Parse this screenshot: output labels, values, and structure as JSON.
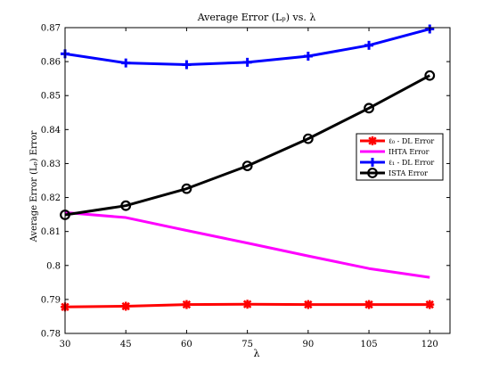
{
  "chart_data": {
    "type": "line",
    "title": "Average Error (Lₚ) vs. λ",
    "xlabel": "λ",
    "ylabel": "Average Error (Lₚ) Error",
    "x": [
      30,
      45,
      60,
      75,
      90,
      105,
      120
    ],
    "xlim": [
      30,
      125
    ],
    "ylim": [
      0.78,
      0.87
    ],
    "xticks": [
      "30",
      "45",
      "60",
      "75",
      "90",
      "105",
      "120"
    ],
    "yticks": [
      "0.78",
      "0.79",
      "0.8",
      "0.81",
      "0.82",
      "0.83",
      "0.84",
      "0.85",
      "0.86",
      "0.87"
    ],
    "grid": false,
    "legend_position": "right",
    "series": [
      {
        "name": "ℓ₀ - DL Error",
        "color": "#ff0000",
        "marker": "asterisk",
        "values": [
          0.7878,
          0.788,
          0.7885,
          0.7886,
          0.7885,
          0.7885,
          0.7885
        ]
      },
      {
        "name": "IHTA Error",
        "color": "#ff00ff",
        "marker": "none",
        "values": [
          0.8156,
          0.8141,
          0.8103,
          0.8066,
          0.8028,
          0.7991,
          0.7965
        ]
      },
      {
        "name": "ℓ₁ - DL Error",
        "color": "#0000ff",
        "marker": "plus",
        "values": [
          0.8623,
          0.8596,
          0.8591,
          0.8598,
          0.8616,
          0.8648,
          0.8696
        ]
      },
      {
        "name": "ISTA Error",
        "color": "#000000",
        "marker": "circle",
        "values": [
          0.8149,
          0.8176,
          0.8226,
          0.8293,
          0.8373,
          0.8463,
          0.8559
        ]
      }
    ]
  }
}
